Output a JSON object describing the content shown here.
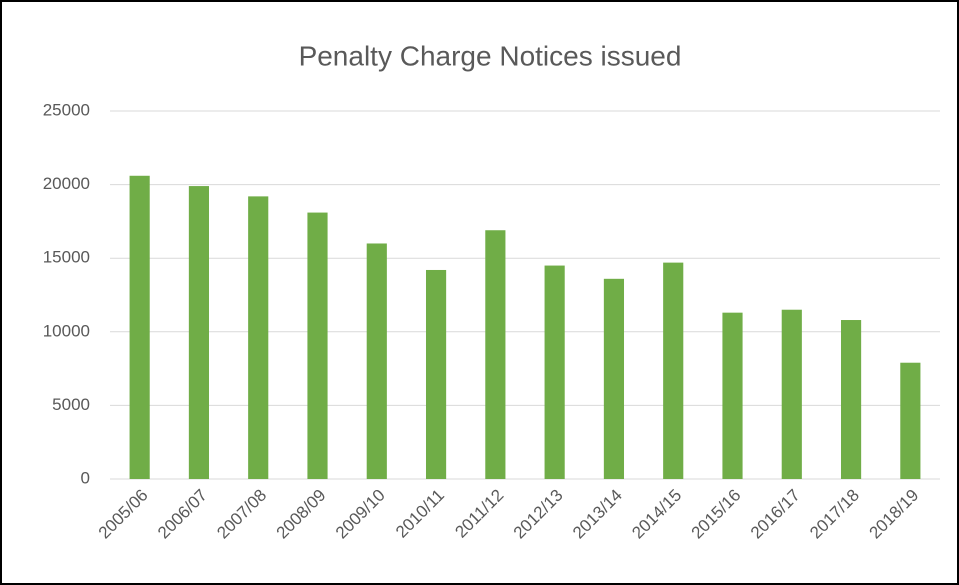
{
  "chart_data": {
    "type": "bar",
    "title": "Penalty Charge Notices issued",
    "categories": [
      "2005/06",
      "2006/07",
      "2007/08",
      "2008/09",
      "2009/10",
      "2010/11",
      "2011/12",
      "2012/13",
      "2013/14",
      "2014/15",
      "2015/16",
      "2016/17",
      "2017/18",
      "2018/19"
    ],
    "values": [
      20600,
      19900,
      19200,
      18100,
      16000,
      14200,
      16900,
      14500,
      13600,
      14700,
      11300,
      11500,
      10800,
      7900
    ],
    "color": "#70ad47",
    "ylim": [
      0,
      25000
    ],
    "yticks": [
      0,
      5000,
      10000,
      15000,
      20000,
      25000
    ],
    "grid": true
  }
}
